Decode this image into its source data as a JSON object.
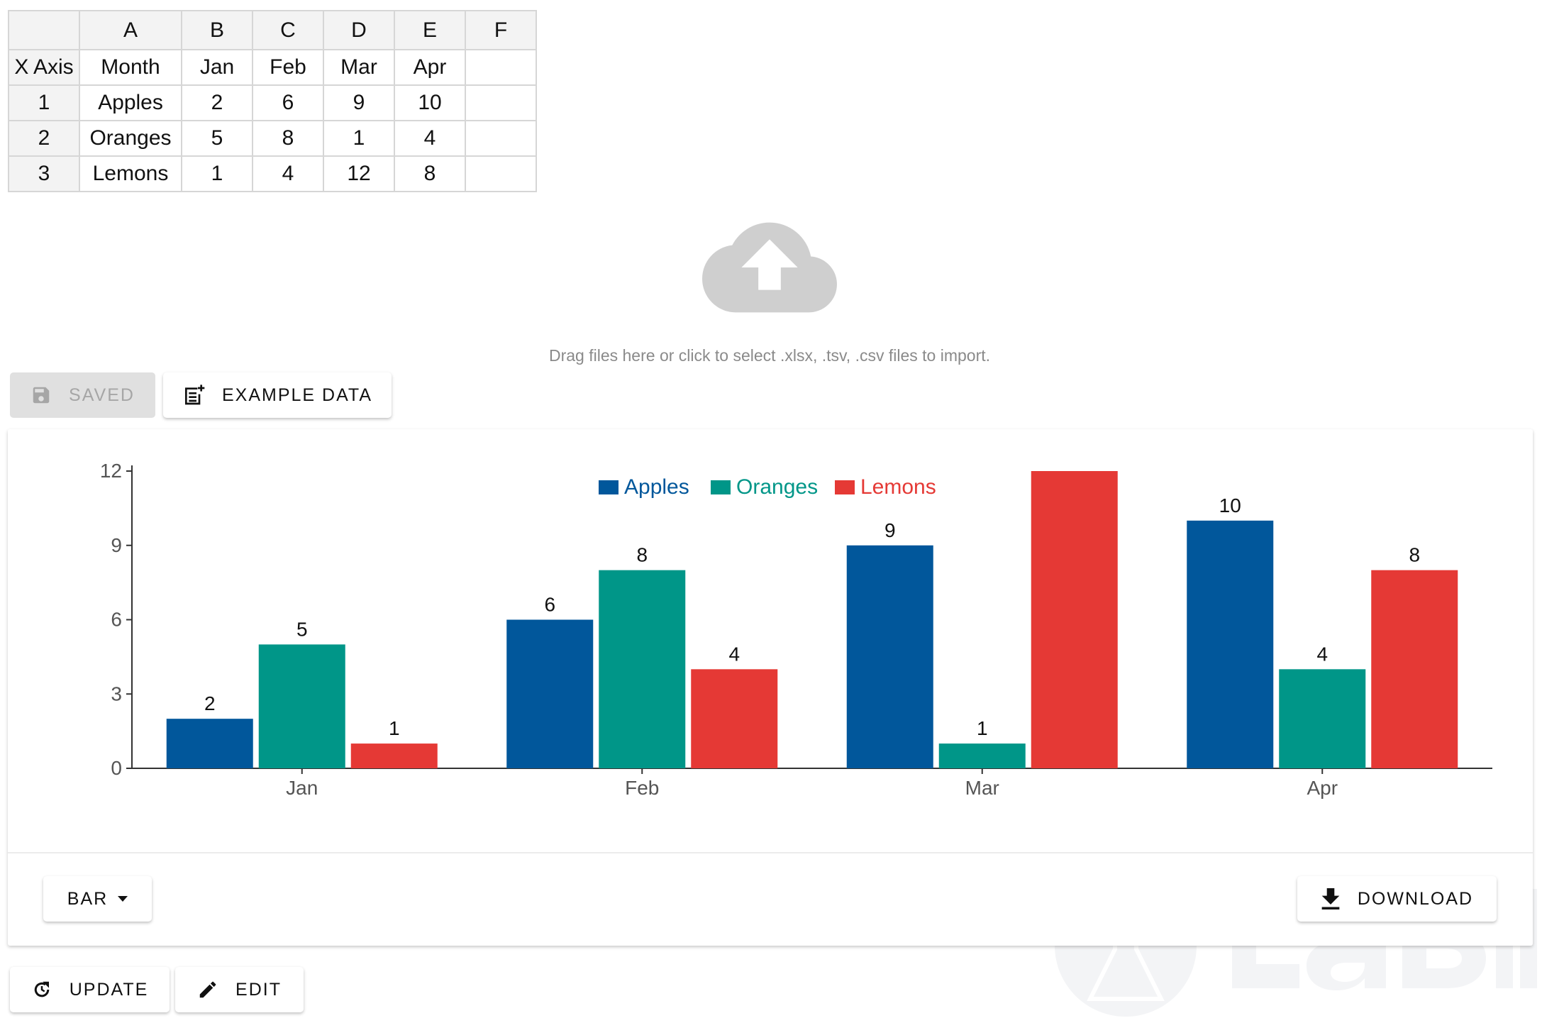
{
  "sheet": {
    "columns": [
      "",
      "A",
      "B",
      "C",
      "D",
      "E",
      "F"
    ],
    "rows": [
      [
        "X Axis",
        "Month",
        "Jan",
        "Feb",
        "Mar",
        "Apr",
        ""
      ],
      [
        "1",
        "Apples",
        "2",
        "6",
        "9",
        "10",
        ""
      ],
      [
        "2",
        "Oranges",
        "5",
        "8",
        "1",
        "4",
        ""
      ],
      [
        "3",
        "Lemons",
        "1",
        "4",
        "12",
        "8",
        ""
      ]
    ]
  },
  "dropzone": {
    "icon": "cloud-upload-icon",
    "text": "Drag files here or click to select .xlsx, .tsv, .csv files to import."
  },
  "toolbar": {
    "saved_label": "SAVED",
    "example_label": "EXAMPLE DATA"
  },
  "card": {
    "chart_type_label": "BAR",
    "download_label": "DOWNLOAD"
  },
  "footer": {
    "update_label": "UPDATE",
    "edit_label": "EDIT"
  },
  "watermark": {
    "text": "LabII"
  },
  "chart_data": {
    "type": "bar",
    "categories": [
      "Jan",
      "Feb",
      "Mar",
      "Apr"
    ],
    "series": [
      {
        "name": "Apples",
        "values": [
          2,
          6,
          9,
          10
        ],
        "color": "#01579b"
      },
      {
        "name": "Oranges",
        "values": [
          5,
          8,
          1,
          4
        ],
        "color": "#009688"
      },
      {
        "name": "Lemons",
        "values": [
          1,
          4,
          12,
          8
        ],
        "color": "#e53935"
      }
    ],
    "yticks": [
      0,
      3,
      6,
      9,
      12
    ],
    "ylim": [
      0,
      12
    ],
    "legend": "top-center",
    "data_labels": true,
    "grid": false
  }
}
